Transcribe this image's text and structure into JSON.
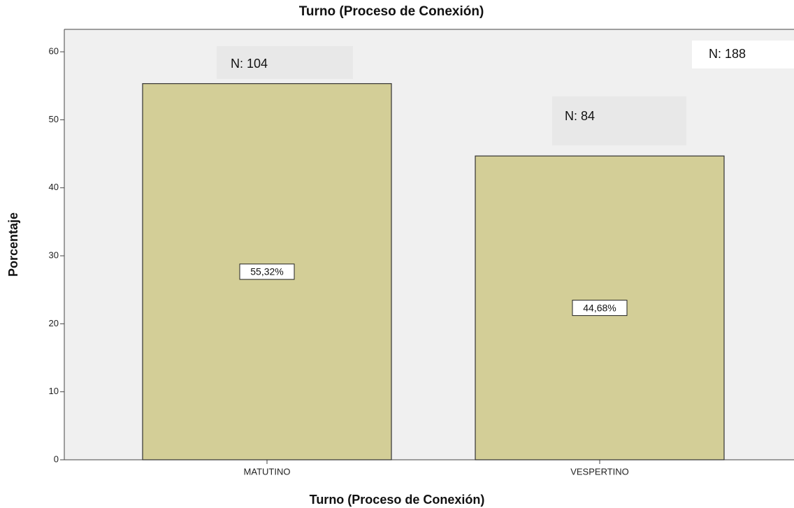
{
  "chart_data": {
    "type": "bar",
    "title": "Turno (Proceso de Conexión)",
    "x_label": "Turno (Proceso de Conexión)",
    "y_label": "Porcentaje",
    "categories": [
      "MATUTINO",
      "VESPERTINO"
    ],
    "values": [
      55.32,
      44.68
    ],
    "value_labels": [
      "55,32%",
      "44,68%"
    ],
    "color": "#d3ce97",
    "ylim": [
      0,
      63.3
    ],
    "yticks": [
      0,
      10,
      20,
      30,
      40,
      50,
      60
    ],
    "grid": false,
    "annotations": [
      "N: 104",
      "N: 84",
      "N: 188"
    ]
  }
}
